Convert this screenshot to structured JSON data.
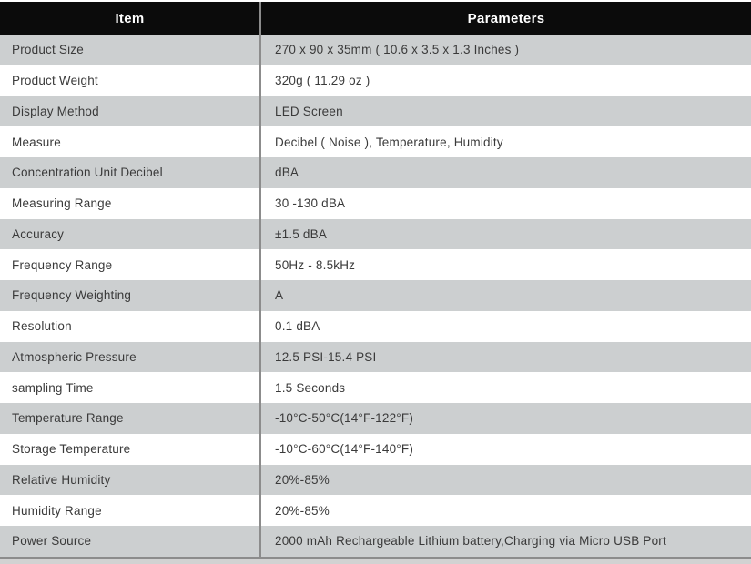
{
  "table": {
    "columns": [
      {
        "label": "Item"
      },
      {
        "label": "Parameters"
      }
    ],
    "rows": [
      {
        "item": "Product Size",
        "value": "270 x 90 x 35mm ( 10.6 x 3.5 x 1.3 Inches )"
      },
      {
        "item": "Product Weight",
        "value": "320g ( 11.29 oz )"
      },
      {
        "item": "Display Method",
        "value": "LED Screen"
      },
      {
        "item": "Measure",
        "value": "Decibel ( Noise ), Temperature, Humidity"
      },
      {
        "item": "Concentration Unit Decibel",
        "value": "dBA"
      },
      {
        "item": "Measuring Range",
        "value": "30 -130 dBA"
      },
      {
        "item": "Accuracy",
        "value": "±1.5 dBA"
      },
      {
        "item": "Frequency Range",
        "value": "50Hz - 8.5kHz"
      },
      {
        "item": "Frequency Weighting",
        "value": "A"
      },
      {
        "item": "Resolution",
        "value": "0.1 dBA"
      },
      {
        "item": "Atmospheric Pressure",
        "value": "12.5 PSI-15.4 PSI"
      },
      {
        "item": "sampling Time",
        "value": "1.5 Seconds"
      },
      {
        "item": "Temperature Range",
        "value": "-10°C-50°C(14°F-122°F)"
      },
      {
        "item": "Storage Temperature",
        "value": "-10°C-60°C(14°F-140°F)"
      },
      {
        "item": "Relative Humidity",
        "value": "20%-85%"
      },
      {
        "item": "Humidity Range",
        "value": "20%-85%"
      },
      {
        "item": "Power Source",
        "value": "2000 mAh Rechargeable Lithium battery,Charging via Micro USB Port"
      }
    ],
    "colors": {
      "header_bg": "#0b0b0b",
      "header_text": "#ffffff",
      "row_alt_bg": "#cccfd0",
      "row_text": "#3a3a3a",
      "column_divider": "#8c8c8c",
      "bottom_line": "#8c8c8c",
      "bottom_strip": "#d2d2d2"
    }
  }
}
